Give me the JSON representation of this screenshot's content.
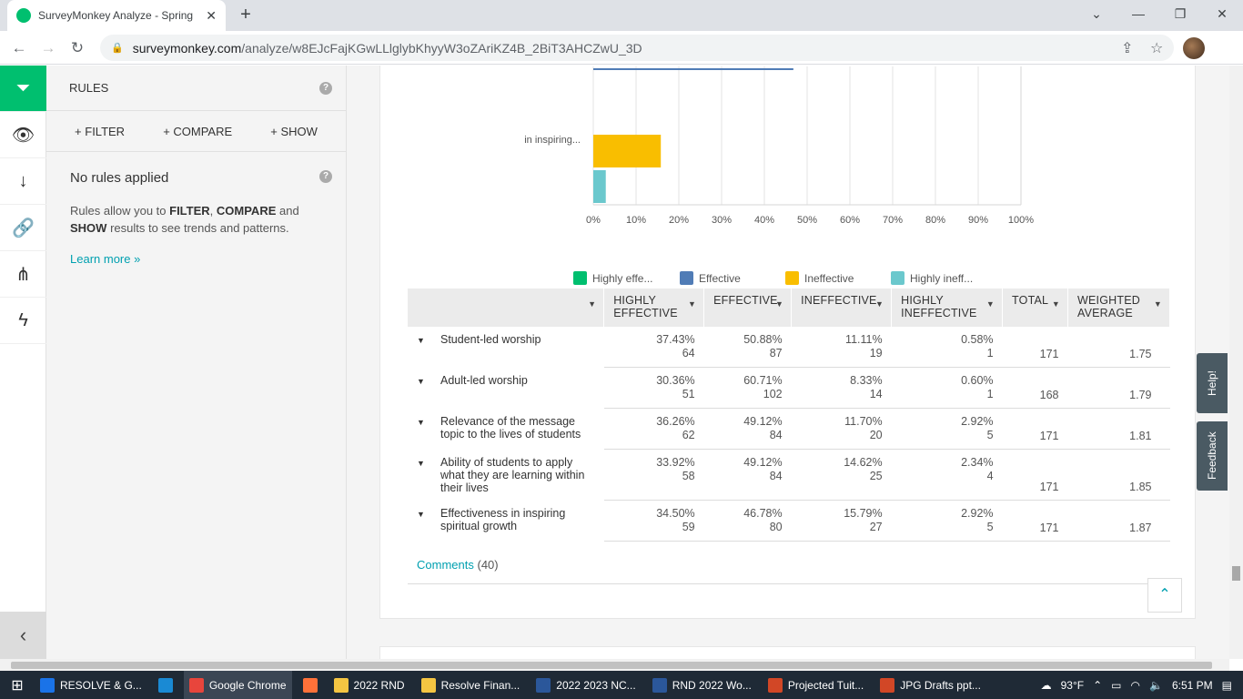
{
  "browser": {
    "tab_title": "SurveyMonkey Analyze - Spring",
    "url_main": "surveymonkey.com",
    "url_path": "/analyze/w8EJcFajKGwLLlglybKhyyW3oZAriKZ4B_2BiT3AHCZwU_3D"
  },
  "rail": {
    "icons": [
      "filter-icon",
      "eye-icon",
      "download-icon",
      "link-icon",
      "share-icon",
      "lightning-icon"
    ],
    "accent": "#00bf6f"
  },
  "rules": {
    "title": "RULES",
    "filter": "+ FILTER",
    "compare": "+ COMPARE",
    "show": "+ SHOW",
    "heading": "No rules applied",
    "desc_prefix": "Rules allow you to ",
    "desc_filter": "FILTER",
    "desc_comma": ", ",
    "desc_compare": "COMPARE",
    "desc_and": " and ",
    "desc_show": "SHOW",
    "desc_suffix": " results to see trends and patterns.",
    "learn_more": "Learn more »"
  },
  "chart_data": {
    "type": "bar",
    "orientation": "horizontal",
    "visible_category_label": "in inspiring...",
    "series": [
      {
        "name": "Highly effe...",
        "color": "#00bf6f"
      },
      {
        "name": "Effective",
        "color": "#507cb6"
      },
      {
        "name": "Ineffective",
        "color": "#f9be00"
      },
      {
        "name": "Highly ineff...",
        "color": "#6bc8cd"
      }
    ],
    "visible_bars": [
      {
        "series": "Effective",
        "value": 46.78
      },
      {
        "series": "Ineffective",
        "value": 15.79
      },
      {
        "series": "Highly ineff...",
        "value": 2.92
      }
    ],
    "xticks": [
      "0%",
      "10%",
      "20%",
      "30%",
      "40%",
      "50%",
      "60%",
      "70%",
      "80%",
      "90%",
      "100%"
    ],
    "xlim": [
      0,
      100
    ],
    "legend": "bottom"
  },
  "table": {
    "headers": [
      "HIGHLY EFFECTIVE",
      "EFFECTIVE",
      "INEFFECTIVE",
      "HIGHLY INEFFECTIVE",
      "TOTAL",
      "WEIGHTED AVERAGE"
    ],
    "rows": [
      {
        "label": "Student-led worship",
        "he": [
          "37.43%",
          "64"
        ],
        "e": [
          "50.88%",
          "87"
        ],
        "i": [
          "11.11%",
          "19"
        ],
        "hi": [
          "0.58%",
          "1"
        ],
        "total": "171",
        "avg": "1.75"
      },
      {
        "label": "Adult-led worship",
        "he": [
          "30.36%",
          "51"
        ],
        "e": [
          "60.71%",
          "102"
        ],
        "i": [
          "8.33%",
          "14"
        ],
        "hi": [
          "0.60%",
          "1"
        ],
        "total": "168",
        "avg": "1.79"
      },
      {
        "label": "Relevance of the message topic to the lives of students",
        "he": [
          "36.26%",
          "62"
        ],
        "e": [
          "49.12%",
          "84"
        ],
        "i": [
          "11.70%",
          "20"
        ],
        "hi": [
          "2.92%",
          "5"
        ],
        "total": "171",
        "avg": "1.81"
      },
      {
        "label": "Ability of students to apply what they are learning within their lives",
        "he": [
          "33.92%",
          "58"
        ],
        "e": [
          "49.12%",
          "84"
        ],
        "i": [
          "14.62%",
          "25"
        ],
        "hi": [
          "2.34%",
          "4"
        ],
        "total": "171",
        "avg": "1.85"
      },
      {
        "label": "Effectiveness in inspiring spiritual growth",
        "he": [
          "34.50%",
          "59"
        ],
        "e": [
          "46.78%",
          "80"
        ],
        "i": [
          "15.79%",
          "27"
        ],
        "hi": [
          "2.92%",
          "5"
        ],
        "total": "171",
        "avg": "1.87"
      }
    ]
  },
  "comments": {
    "label": "Comments",
    "count": "(40)"
  },
  "sidetabs": {
    "help": "Help!",
    "feedback": "Feedback"
  },
  "taskbar": {
    "items": [
      {
        "label": "RESOLVE & G...",
        "color": "#1a73e8"
      },
      {
        "label": "",
        "color": "#1a8ad4"
      },
      {
        "label": "Google Chrome",
        "color": "#e8453c"
      },
      {
        "label": "",
        "color": "#ff7139"
      },
      {
        "label": "2022 RND",
        "color": "#f4c542"
      },
      {
        "label": "Resolve Finan...",
        "color": "#f4c542"
      },
      {
        "label": "2022 2023 NC...",
        "color": "#2b579a"
      },
      {
        "label": "RND 2022 Wo...",
        "color": "#2b579a"
      },
      {
        "label": "Projected Tuit...",
        "color": "#d24726"
      },
      {
        "label": "JPG Drafts ppt...",
        "color": "#d24726"
      }
    ],
    "weather": "93°F",
    "time": "6:51 PM"
  }
}
